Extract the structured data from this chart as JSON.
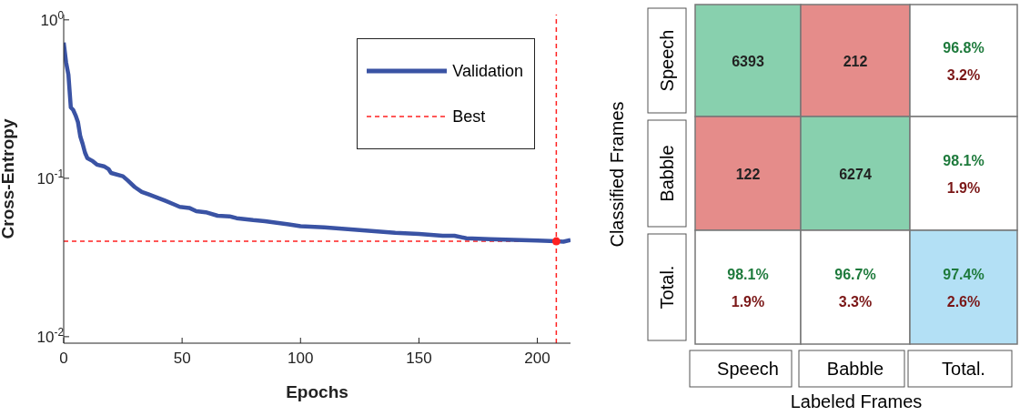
{
  "chart_data": [
    {
      "type": "line",
      "xlabel": "Epochs",
      "ylabel": "Cross-Entropy",
      "log": "y",
      "grid": false,
      "legend": "top right",
      "xlim": [
        0,
        214
      ],
      "xticks": [
        0,
        50,
        100,
        150,
        200
      ],
      "ylim": [
        0.0091,
        1.08
      ],
      "yticks": [
        {
          "value": 1,
          "label": "10$^{0}$"
        },
        {
          "value": 0.1,
          "label": "10$^{-1}$"
        },
        {
          "value": 0.01,
          "label": "10$^{-2}$"
        }
      ],
      "series": [
        {
          "name": "Validation",
          "color": "#3a53a4",
          "type": "line",
          "marker": "none",
          "x": [
            0,
            1,
            2,
            3,
            4,
            5,
            6,
            7,
            8,
            9,
            10,
            12,
            14,
            17,
            19,
            20,
            25,
            27,
            30,
            33,
            36,
            40,
            43,
            47,
            49,
            53,
            56,
            60,
            65,
            70,
            73,
            80,
            85,
            90,
            95,
            100,
            110,
            120,
            130,
            140,
            150,
            160,
            165,
            170,
            180,
            190,
            200,
            208,
            211,
            214
          ],
          "values": [
            0.72,
            0.54,
            0.45,
            0.28,
            0.27,
            0.25,
            0.227,
            0.184,
            0.165,
            0.145,
            0.134,
            0.129,
            0.122,
            0.119,
            0.114,
            0.108,
            0.103,
            0.097,
            0.088,
            0.082,
            0.079,
            0.075,
            0.072,
            0.068,
            0.066,
            0.065,
            0.062,
            0.061,
            0.058,
            0.0575,
            0.056,
            0.0544,
            0.0536,
            0.0523,
            0.0512,
            0.0498,
            0.049,
            0.0477,
            0.0465,
            0.0452,
            0.0445,
            0.0434,
            0.0434,
            0.0418,
            0.0413,
            0.0408,
            0.0405,
            0.04,
            0.0398,
            0.0408
          ]
        },
        {
          "name": "Best",
          "color": "#ff2020",
          "type": "scatter",
          "marker": "circle",
          "line_style": "dashed",
          "x": [
            208
          ],
          "values": [
            0.04
          ]
        }
      ],
      "ref_lines": [
        {
          "axis": "x",
          "value": 208,
          "color": "#ff2020",
          "line_style": "dashed"
        },
        {
          "axis": "y",
          "value": 0.04,
          "color": "#ff2020",
          "line_style": "dashed"
        }
      ]
    },
    {
      "type": "heatmap",
      "xlabel": "Labeled Frames",
      "ylabel": "Classified Frames",
      "categories": [
        "Speech",
        "Babble",
        "Total."
      ],
      "y_categories": [
        "Speech",
        "Babble",
        "Total."
      ],
      "cells": [
        [
          6393,
          212,
          96.8
        ],
        [
          122,
          6274,
          98.1
        ],
        [
          98.1,
          96.7,
          97.4
        ]
      ],
      "cell_labels": [
        [
          "6393",
          "212",
          "96.8%"
        ],
        [
          "122",
          "6274",
          "98.1%"
        ],
        [
          "98.1%",
          "96.7%",
          "97.4%"
        ]
      ],
      "annotations": [
        "3.2%",
        "1.9%",
        "1.9%",
        "3.3%",
        "2.6%"
      ],
      "colors": [
        [
          "#88d0ae",
          "#e58c8a",
          "#ffffff"
        ],
        [
          "#e58c8a",
          "#88d0ae",
          "#ffffff"
        ],
        [
          "#ffffff",
          "#ffffff",
          "#b3e0f5"
        ]
      ]
    }
  ]
}
